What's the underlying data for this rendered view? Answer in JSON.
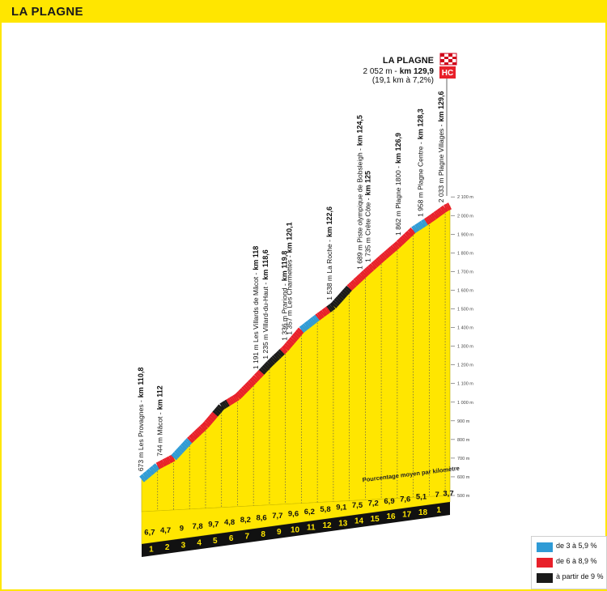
{
  "header": {
    "title": "LA PLAGNE"
  },
  "summit": {
    "name": "LA PLAGNE",
    "alt_text": "2 052 m -",
    "km_text": "km 129,9",
    "detail": "(19,1 km à 7,2%)",
    "category": "HC"
  },
  "chart_data": {
    "type": "area",
    "title": "LA PLAGNE",
    "x_label_in_chart": "Pourcentage moyen par kilomètre",
    "ylim": [
      500,
      2100
    ],
    "y_ticks": [
      "500 m",
      "600 m",
      "700 m",
      "800 m",
      "900 m",
      "1 000 m",
      "1 100 m",
      "1 200 m",
      "1 300 m",
      "1 400 m",
      "1 500 m",
      "1 600 m",
      "1 700 m",
      "1 800 m",
      "1 900 m",
      "2 000 m",
      "2 100 m"
    ],
    "km_labels": [
      "1",
      "2",
      "3",
      "4",
      "5",
      "6",
      "7",
      "8",
      "9",
      "10",
      "11",
      "12",
      "13",
      "14",
      "15",
      "16",
      "17",
      "18",
      "1"
    ],
    "gradients": [
      "6,7",
      "4,7",
      "9",
      "7,8",
      "9,7",
      "4,8",
      "8,2",
      "8,6",
      "7,7",
      "9,6",
      "6,2",
      "5,8",
      "9,1",
      "7,5",
      "7,2",
      "6,9",
      "7,6",
      "5,1",
      "7",
      "3,7"
    ],
    "profile": {
      "km": [
        0,
        1,
        2,
        3,
        4,
        5,
        6,
        7,
        8,
        9,
        10,
        11,
        12,
        13,
        14,
        15,
        16,
        17,
        18,
        19,
        19.3
      ],
      "altitude": [
        673,
        740,
        780,
        868,
        944,
        1040,
        1088,
        1170,
        1256,
        1333,
        1429,
        1491,
        1549,
        1640,
        1715,
        1787,
        1856,
        1932,
        1983,
        2040,
        2052
      ]
    },
    "colored_segments": [
      {
        "from_km": 2,
        "to_km": 3,
        "class": "de 3 à 5,9 %"
      },
      {
        "from_km": 4.6,
        "to_km": 5.4,
        "class": "à partir de 9 %"
      },
      {
        "from_km": 10,
        "to_km": 11,
        "class": "de 3 à 5,9 %"
      },
      {
        "from_km": 11.7,
        "to_km": 13,
        "class": "à partir de 9 %"
      },
      {
        "from_km": 7.5,
        "to_km": 8.8,
        "class": "à partir de 9 %"
      },
      {
        "from_km": 17,
        "to_km": 17.8,
        "class": "de 3 à 5,9 %"
      }
    ],
    "waypoints": [
      {
        "text": "673 m Les Provagnes -",
        "km_text": "km 110,8",
        "km": 0
      },
      {
        "text": "744 m Mâcot -",
        "km_text": "km 112",
        "km": 1.2
      },
      {
        "text": "1 191 m Les Villards de Mâcot -",
        "km_text": "km 118",
        "km": 7.2
      },
      {
        "text": "1 235 m Villard-du-Haut -",
        "km_text": "km 118,6",
        "km": 7.8
      },
      {
        "text": "1 336 m Prariond -",
        "km_text": "km 119,8",
        "km": 9.0
      },
      {
        "text": "1 357 m Les Charmettes -",
        "km_text": "km 120,1",
        "km": 9.3
      },
      {
        "text": "1 538 m La Roche -",
        "km_text": "km 122,6",
        "km": 11.8
      },
      {
        "text": "1 689 m Piste olympique de Bobsleigh -",
        "km_text": "km 124,5",
        "km": 13.7
      },
      {
        "text": "1 735 m Crête Côte -",
        "km_text": "km 125",
        "km": 14.2
      },
      {
        "text": "1 862 m Plagne 1800 -",
        "km_text": "km 126,9",
        "km": 16.1
      },
      {
        "text": "1 958 m Plagne Centre -",
        "km_text": "km 128,3",
        "km": 17.5
      },
      {
        "text": "2 033 m Plagne Villages -",
        "km_text": "km 129,6",
        "km": 18.8
      }
    ],
    "legend": [
      {
        "label": "de 3 à 5,9 %",
        "color": "#2f9bd6"
      },
      {
        "label": "de 6 à 8,9 %",
        "color": "#e8202a"
      },
      {
        "label": "à partir de 9 %",
        "color": "#1a1a1a"
      }
    ]
  }
}
